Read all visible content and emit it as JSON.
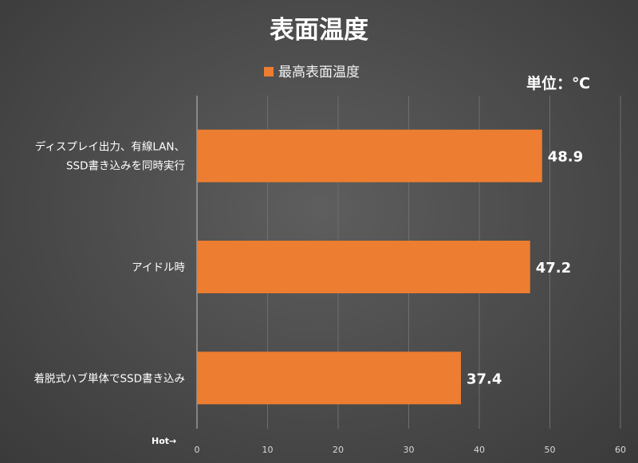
{
  "chart_data": {
    "type": "bar",
    "orientation": "horizontal",
    "title": "表面温度",
    "unit_label": "単位：℃",
    "axis_note": "Hot→",
    "legend_position": "top",
    "grid": true,
    "categories": [
      "ディスプレイ出力、有線LAN、SSD書き込みを同時実行",
      "アイドル時",
      "着脱式ハブ単体でSSD書き込み"
    ],
    "category_lines": [
      [
        "ディスプレイ出力、有線LAN、",
        "SSD書き込みを同時実行"
      ],
      [
        "アイドル時"
      ],
      [
        "着脱式ハブ単体でSSD書き込み"
      ]
    ],
    "series": [
      {
        "name": "最高表面温度",
        "color": "#ed7d31",
        "values": [
          48.9,
          47.2,
          37.4
        ]
      }
    ],
    "value_labels": [
      "48.9",
      "47.2",
      "37.4"
    ],
    "xlim": [
      0,
      60
    ],
    "xticks": [
      0,
      10,
      20,
      30,
      40,
      50,
      60
    ],
    "xtick_labels": [
      "0",
      "10",
      "20",
      "30",
      "40",
      "50",
      "60"
    ]
  }
}
